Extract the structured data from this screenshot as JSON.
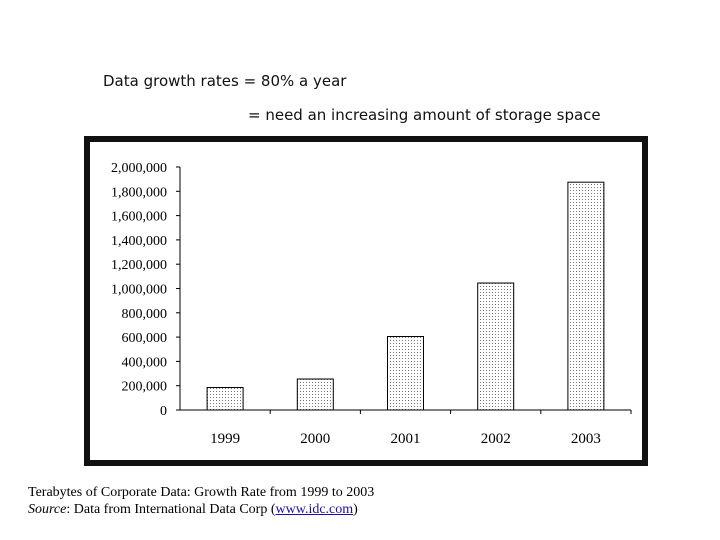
{
  "headline": {
    "line1": "Data growth rates = 80% a year",
    "line2": "= need an increasing amount of storage space"
  },
  "caption": {
    "line1": "Terabytes of Corporate Data: Growth Rate from 1999 to 2003",
    "source_label": "Source",
    "source_text": ": Data from International Data Corp (",
    "source_link": "www.idc.com",
    "source_end": ")"
  },
  "chart_data": {
    "type": "bar",
    "categories": [
      "1999",
      "2000",
      "2001",
      "2002",
      "2003"
    ],
    "values": [
      185000,
      255000,
      605000,
      1045000,
      1875000
    ],
    "ylim": [
      0,
      2000000
    ],
    "yticks": [
      "0",
      "200,000",
      "400,000",
      "600,000",
      "800,000",
      "1,000,000",
      "1,200,000",
      "1,400,000",
      "1,600,000",
      "1,800,000",
      "2,000,000"
    ],
    "grid": false,
    "bar_fill": "#e6e6e6",
    "bar_stroke": "#000000",
    "title": "",
    "xlabel": "",
    "ylabel": ""
  }
}
